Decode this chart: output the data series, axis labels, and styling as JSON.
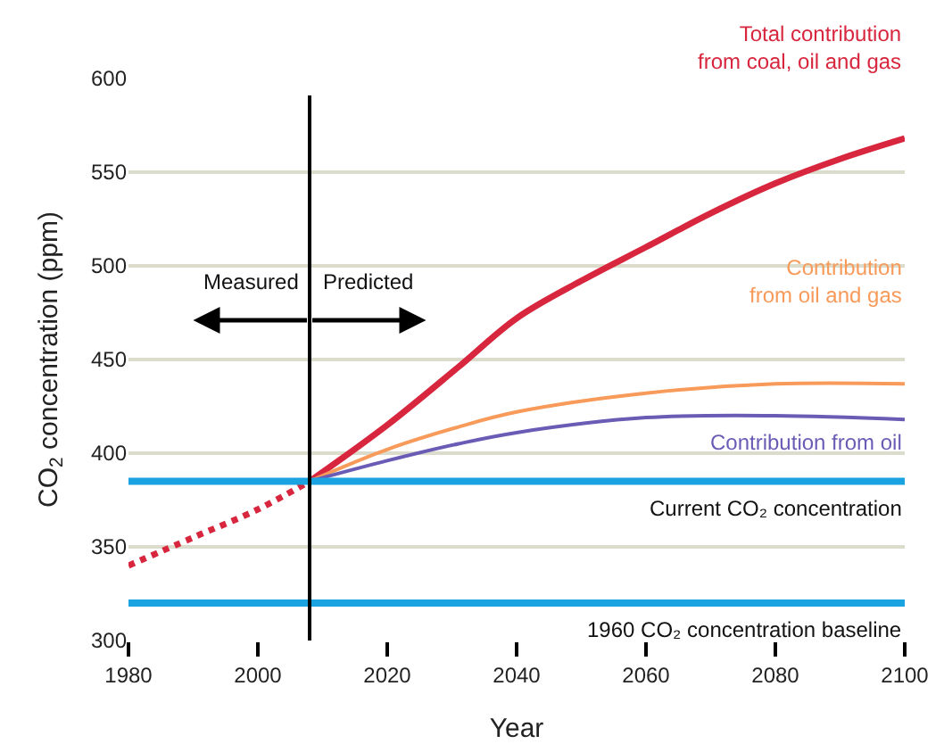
{
  "chart_data": {
    "type": "line",
    "xlabel": "Year",
    "ylabel": "CO$_{2}$ concentration (ppm)",
    "xlim": [
      1980,
      2100
    ],
    "xticks": [
      1980,
      2000,
      2020,
      2040,
      2060,
      2080,
      2100
    ],
    "ylim": [
      300,
      600
    ],
    "yticks": [
      300,
      350,
      400,
      450,
      500,
      550,
      600
    ],
    "grid": "y",
    "legend": false,
    "marker": "none",
    "series": [
      {
        "color": "#d7263d",
        "line_style": "dotted",
        "x": [
          1980,
          1990,
          2000,
          2008
        ],
        "values": [
          340,
          355,
          370,
          385
        ]
      },
      {
        "name": "Total contribution\nfrom coal, oil and gas",
        "color": "#d7263d",
        "line_style": "solid",
        "x": [
          2008,
          2020,
          2031,
          2040,
          2050,
          2060,
          2070,
          2080,
          2090,
          2100
        ],
        "values": [
          385,
          415,
          446,
          472,
          492,
          510,
          528,
          544,
          557,
          568
        ]
      },
      {
        "name": "Contribution\nfrom oil and gas",
        "color": "#f79a5a",
        "line_style": "solid",
        "x": [
          2008,
          2020,
          2031,
          2040,
          2060,
          2080,
          2100
        ],
        "values": [
          385,
          402,
          414,
          422,
          432,
          437,
          437
        ]
      },
      {
        "name": "Contribution from oil",
        "color": "#6a5bb5",
        "line_style": "solid",
        "x": [
          2008,
          2020,
          2031,
          2040,
          2060,
          2080,
          2100
        ],
        "values": [
          385,
          396,
          405,
          411,
          419,
          420,
          418
        ]
      }
    ],
    "ref_lines": [
      {
        "axis": "y",
        "value": 385,
        "label": "Current CO₂ concentration",
        "color": "#1aa3e0"
      },
      {
        "axis": "y",
        "value": 320,
        "label": "1960 CO₂ concentration baseline",
        "color": "#1aa3e0"
      },
      {
        "axis": "x",
        "value": 2008,
        "color": "#000000"
      }
    ],
    "annotations": [
      "Measured",
      "Predicted"
    ]
  }
}
